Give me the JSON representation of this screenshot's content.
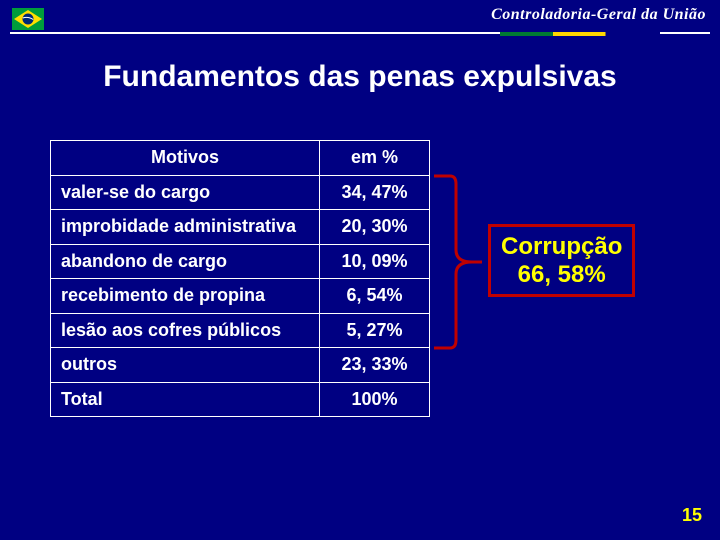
{
  "header": {
    "org_name": "Controladoria-Geral da União",
    "line_color": "#ffffff",
    "accent_colors": [
      "#007a33",
      "#ffd700",
      "#000082"
    ],
    "flag": {
      "bg": "#009c3b",
      "diamond": "#ffdf00",
      "circle": "#002776"
    }
  },
  "title": "Fundamentos das penas expulsivas",
  "table": {
    "header_bg": "transparent",
    "border_color": "#ffffff",
    "text_color": "#ffffff",
    "fontsize": 18,
    "columns": [
      "Motivos",
      "em %"
    ],
    "rows": [
      [
        "valer-se do cargo",
        "34, 47%"
      ],
      [
        "improbidade administrativa",
        "20, 30%"
      ],
      [
        "abandono de cargo",
        "10, 09%"
      ],
      [
        "recebimento de propina",
        "6, 54%"
      ],
      [
        "lesão aos cofres públicos",
        "5, 27%"
      ],
      [
        "outros",
        "23, 33%"
      ],
      [
        "Total",
        "100%"
      ]
    ]
  },
  "bracket": {
    "color": "#c00000",
    "stroke_width": 3,
    "rows_span": [
      0,
      4
    ]
  },
  "callout": {
    "line1": "Corrupção",
    "line2": "66, 58%",
    "border_color": "#c00000",
    "text_color": "#ffff00",
    "fontsize": 24
  },
  "page_number": "15",
  "background_color": "#000082"
}
